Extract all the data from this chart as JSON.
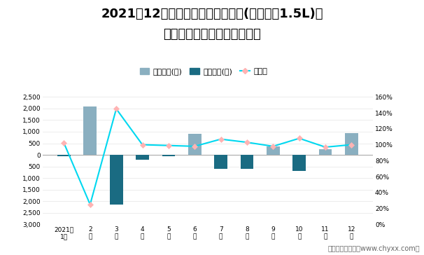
{
  "title_line1": "2021年12月桑塔纳旗下最畅销轿车(新桑塔纳1.5L)近",
  "title_line2": "一年库存情况及产销率统计图",
  "months": [
    "2021年\n1月",
    "2\n月",
    "3\n月",
    "4\n月",
    "5\n月",
    "6\n月",
    "7\n月",
    "8\n月",
    "9\n月",
    "10\n月",
    "11\n月",
    "12\n月"
  ],
  "jiya": [
    0,
    2100,
    0,
    0,
    0,
    900,
    0,
    0,
    350,
    0,
    250,
    950
  ],
  "qingcang": [
    -50,
    0,
    -2150,
    -200,
    -50,
    0,
    -600,
    -600,
    0,
    -700,
    0,
    0
  ],
  "chanxiao": [
    1.02,
    0.25,
    1.45,
    1.0,
    0.99,
    0.98,
    1.07,
    1.03,
    0.98,
    1.08,
    0.97,
    1.0
  ],
  "bar_color_jiya": "#8AAFC0",
  "bar_color_qingcang": "#1a6b82",
  "line_color": "#00d8f0",
  "line_marker_facecolor": "#ffb3b3",
  "line_marker_edgecolor": "#ffb3b3",
  "ylim_left": [
    -3000,
    2500
  ],
  "ylim_right": [
    0,
    1.6
  ],
  "yticks_left": [
    2500,
    2000,
    1500,
    1000,
    500,
    0,
    -500,
    -1000,
    -1500,
    -2000,
    -2500,
    -3000
  ],
  "ytick_labels_left": [
    "2,500",
    "2,000",
    "1,500",
    "1,000",
    "500",
    "0",
    "500",
    "1,000",
    "1,500",
    "2,000",
    "2,500",
    "3,000"
  ],
  "yticks_right": [
    0,
    0.2,
    0.4,
    0.6,
    0.8,
    1.0,
    1.2,
    1.4,
    1.6
  ],
  "ytick_labels_right": [
    "0%",
    "20%",
    "40%",
    "60%",
    "80%",
    "100%",
    "120%",
    "140%",
    "160%"
  ],
  "legend_labels": [
    "积压库存(辆)",
    "清仓库存(辆)",
    "产销率"
  ],
  "footnote": "制图：智研咨询（www.chyxx.com）",
  "bg_color": "#ffffff",
  "title_fontsize": 13,
  "footnote_fontsize": 7
}
